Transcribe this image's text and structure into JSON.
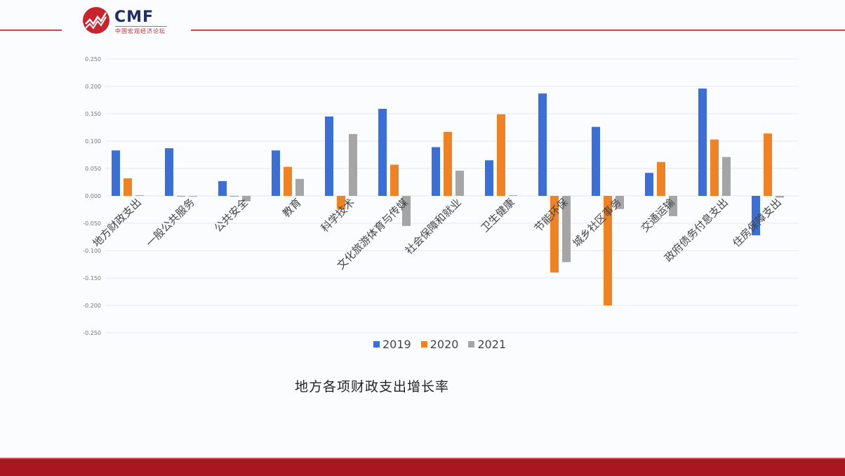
{
  "header": {
    "logo_text": "CMF",
    "logo_subtitle": "中国宏观经济论坛",
    "accent_color": "#c8242e"
  },
  "chart_data": {
    "type": "bar",
    "title": "地方各项财政支出增长率",
    "xlabel": "",
    "ylabel": "",
    "ylim": [
      -0.25,
      0.25
    ],
    "yticks": [
      "0.250",
      "0.200",
      "0.150",
      "0.100",
      "0.050",
      "0.000",
      "-0.050",
      "-0.100",
      "-0.150",
      "-0.200",
      "-0.250"
    ],
    "grid": true,
    "legend_position": "bottom",
    "categories": [
      "地方财政支出",
      "一般公共服务",
      "公共安全",
      "教育",
      "科学技术",
      "文化旅游体育与传媒",
      "社会保障和就业",
      "卫生健康",
      "节能环保",
      "城乡社区事务",
      "交通运输",
      "政府债务付息支出",
      "住房保障支出"
    ],
    "series": [
      {
        "name": "2019",
        "color": "#3a6fd8",
        "values": [
          0.083,
          0.087,
          0.027,
          0.083,
          0.145,
          0.159,
          0.089,
          0.065,
          0.187,
          0.126,
          0.042,
          0.196,
          -0.072
        ]
      },
      {
        "name": "2020",
        "color": "#f08222",
        "values": [
          0.032,
          -0.001,
          -0.001,
          0.053,
          -0.024,
          0.057,
          0.117,
          0.149,
          -0.14,
          -0.2,
          0.062,
          0.103,
          0.114
        ]
      },
      {
        "name": "2021",
        "color": "#a5a5a5",
        "values": [
          0.0,
          -0.001,
          -0.01,
          0.031,
          0.113,
          -0.055,
          0.046,
          0.001,
          -0.121,
          -0.024,
          -0.037,
          0.071,
          -0.003
        ]
      }
    ]
  }
}
